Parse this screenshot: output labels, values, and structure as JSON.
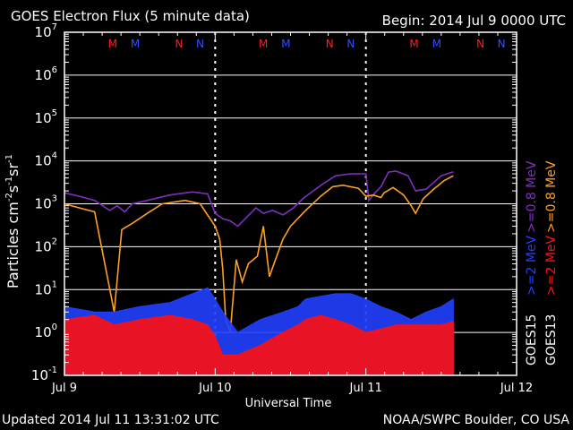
{
  "header": {
    "title": "GOES Electron Flux (5 minute data)",
    "begin": "Begin: 2014 Jul 9 0000 UTC"
  },
  "footer": {
    "updated": "Updated 2014 Jul 11 13:31:02 UTC",
    "credit": "NOAA/SWPC Boulder, CO USA"
  },
  "colors": {
    "background": "#000000",
    "frame": "#ffffff",
    "goes15_08mev": "#7f2fc0",
    "goes13_08mev": "#ffa020",
    "goes15_2mev": "#2040ff",
    "goes13_2mev": "#ff1010",
    "marker_m": "#ff2020",
    "marker_n_red": "#ff2020",
    "marker_n_blue": "#3050ff"
  },
  "chart_data": {
    "type": "line",
    "title": "GOES Electron Flux (5 minute data)",
    "xlabel": "Universal Time",
    "ylabel": "Particles cm-2s-1sr-1",
    "y_scale": "log",
    "ylim": [
      0.1,
      10000000
    ],
    "xlim": [
      "2014-07-09",
      "2014-07-12"
    ],
    "x_ticks": [
      "Jul 9",
      "Jul 10",
      "Jul 11",
      "Jul 12"
    ],
    "y_ticks": [
      {
        "base": "10",
        "exp": "-1"
      },
      {
        "base": "10",
        "exp": "0"
      },
      {
        "base": "10",
        "exp": "1"
      },
      {
        "base": "10",
        "exp": "2"
      },
      {
        "base": "10",
        "exp": "3"
      },
      {
        "base": "10",
        "exp": "4"
      },
      {
        "base": "10",
        "exp": "5"
      },
      {
        "base": "10",
        "exp": "6"
      },
      {
        "base": "10",
        "exp": "7"
      }
    ],
    "grid": true,
    "threshold": 1000,
    "markers": [
      {
        "label": "M",
        "day": 0.32,
        "color": "marker_m"
      },
      {
        "label": "M",
        "day": 0.47,
        "color": "marker_n_blue"
      },
      {
        "label": "N",
        "day": 0.76,
        "color": "marker_n_red"
      },
      {
        "label": "N",
        "day": 0.9,
        "color": "marker_n_blue"
      },
      {
        "label": "M",
        "day": 1.32,
        "color": "marker_m"
      },
      {
        "label": "M",
        "day": 1.47,
        "color": "marker_n_blue"
      },
      {
        "label": "N",
        "day": 1.76,
        "color": "marker_n_red"
      },
      {
        "label": "N",
        "day": 1.9,
        "color": "marker_n_blue"
      },
      {
        "label": "M",
        "day": 2.32,
        "color": "marker_m"
      },
      {
        "label": "M",
        "day": 2.47,
        "color": "marker_n_blue"
      },
      {
        "label": "N",
        "day": 2.76,
        "color": "marker_n_red"
      },
      {
        "label": "N",
        "day": 2.9,
        "color": "marker_n_blue"
      }
    ],
    "legend": {
      "placement": "right",
      "groups": [
        {
          "label": "GOES15",
          "entries": [
            {
              "label": ">=0.8 MeV",
              "color": "goes15_08mev"
            },
            {
              "label": ">=2 MeV",
              "color": "goes15_2mev"
            }
          ]
        },
        {
          "label": "GOES13",
          "entries": [
            {
              "label": ">=0.8 MeV",
              "color": "goes13_08mev"
            },
            {
              "label": ">=2 MeV",
              "color": "goes13_2mev"
            }
          ]
        }
      ],
      "unit": "MeV"
    },
    "series": [
      {
        "name": "GOES15 >=0.8 MeV",
        "color": "goes15_08mev",
        "style": "line",
        "points": [
          [
            0,
            1800
          ],
          [
            0.1,
            1500
          ],
          [
            0.2,
            1200
          ],
          [
            0.3,
            700
          ],
          [
            0.35,
            900
          ],
          [
            0.4,
            650
          ],
          [
            0.45,
            1000
          ],
          [
            0.55,
            1200
          ],
          [
            0.7,
            1600
          ],
          [
            0.85,
            1900
          ],
          [
            0.95,
            1700
          ],
          [
            1.0,
            600
          ],
          [
            1.05,
            450
          ],
          [
            1.1,
            400
          ],
          [
            1.15,
            300
          ],
          [
            1.2,
            450
          ],
          [
            1.27,
            800
          ],
          [
            1.32,
            600
          ],
          [
            1.38,
            700
          ],
          [
            1.45,
            550
          ],
          [
            1.52,
            800
          ],
          [
            1.58,
            1300
          ],
          [
            1.65,
            2000
          ],
          [
            1.72,
            3000
          ],
          [
            1.8,
            4500
          ],
          [
            1.9,
            5000
          ],
          [
            2.0,
            5000
          ],
          [
            2.02,
            1200
          ],
          [
            2.06,
            1800
          ],
          [
            2.1,
            2500
          ],
          [
            2.15,
            5500
          ],
          [
            2.2,
            5800
          ],
          [
            2.28,
            4500
          ],
          [
            2.33,
            2000
          ],
          [
            2.4,
            2200
          ],
          [
            2.5,
            4500
          ],
          [
            2.58,
            5600
          ]
        ]
      },
      {
        "name": "GOES13 >=0.8 MeV",
        "color": "goes13_08mev",
        "style": "line",
        "points": [
          [
            0,
            1000
          ],
          [
            0.1,
            800
          ],
          [
            0.2,
            650
          ],
          [
            0.33,
            3
          ],
          [
            0.38,
            250
          ],
          [
            0.45,
            350
          ],
          [
            0.55,
            600
          ],
          [
            0.65,
            1000
          ],
          [
            0.8,
            1200
          ],
          [
            0.9,
            1000
          ],
          [
            1.0,
            300
          ],
          [
            1.03,
            150
          ],
          [
            1.05,
            30
          ],
          [
            1.07,
            2
          ],
          [
            1.1,
            1
          ],
          [
            1.14,
            50
          ],
          [
            1.18,
            15
          ],
          [
            1.22,
            40
          ],
          [
            1.28,
            60
          ],
          [
            1.32,
            300
          ],
          [
            1.36,
            20
          ],
          [
            1.4,
            50
          ],
          [
            1.45,
            150
          ],
          [
            1.5,
            300
          ],
          [
            1.6,
            700
          ],
          [
            1.7,
            1500
          ],
          [
            1.78,
            2500
          ],
          [
            1.85,
            2700
          ],
          [
            1.95,
            2300
          ],
          [
            2.0,
            1500
          ],
          [
            2.05,
            1600
          ],
          [
            2.1,
            1400
          ],
          [
            2.12,
            1800
          ],
          [
            2.18,
            2400
          ],
          [
            2.25,
            1600
          ],
          [
            2.3,
            900
          ],
          [
            2.33,
            600
          ],
          [
            2.38,
            1300
          ],
          [
            2.45,
            2200
          ],
          [
            2.52,
            3500
          ],
          [
            2.58,
            4500
          ]
        ]
      },
      {
        "name": "GOES15 >=2 MeV",
        "color": "goes15_2mev",
        "style": "bars",
        "points": [
          [
            0,
            4
          ],
          [
            0.2,
            3
          ],
          [
            0.33,
            3
          ],
          [
            0.5,
            4
          ],
          [
            0.7,
            5
          ],
          [
            0.85,
            8
          ],
          [
            0.95,
            11
          ],
          [
            1.0,
            6
          ],
          [
            1.05,
            3
          ],
          [
            1.15,
            1
          ],
          [
            1.3,
            2
          ],
          [
            1.45,
            3
          ],
          [
            1.55,
            4
          ],
          [
            1.6,
            6
          ],
          [
            1.7,
            7
          ],
          [
            1.8,
            8
          ],
          [
            1.9,
            8
          ],
          [
            2.0,
            6
          ],
          [
            2.1,
            4
          ],
          [
            2.2,
            3
          ],
          [
            2.3,
            2
          ],
          [
            2.4,
            3
          ],
          [
            2.5,
            4
          ],
          [
            2.58,
            6
          ]
        ]
      },
      {
        "name": "GOES13 >=2 MeV",
        "color": "goes13_2mev",
        "style": "bars",
        "points": [
          [
            0,
            2
          ],
          [
            0.2,
            2.5
          ],
          [
            0.33,
            1.5
          ],
          [
            0.5,
            2
          ],
          [
            0.7,
            2.5
          ],
          [
            0.85,
            2
          ],
          [
            0.95,
            1.5
          ],
          [
            1.0,
            0.8
          ],
          [
            1.05,
            0.3
          ],
          [
            1.15,
            0.3
          ],
          [
            1.3,
            0.5
          ],
          [
            1.45,
            1
          ],
          [
            1.55,
            1.5
          ],
          [
            1.6,
            2
          ],
          [
            1.7,
            2.5
          ],
          [
            1.8,
            2
          ],
          [
            1.9,
            1.5
          ],
          [
            2.0,
            1
          ],
          [
            2.1,
            1.2
          ],
          [
            2.2,
            1.5
          ],
          [
            2.3,
            1.5
          ],
          [
            2.4,
            1.5
          ],
          [
            2.5,
            1.5
          ],
          [
            2.58,
            1.8
          ]
        ]
      }
    ]
  }
}
